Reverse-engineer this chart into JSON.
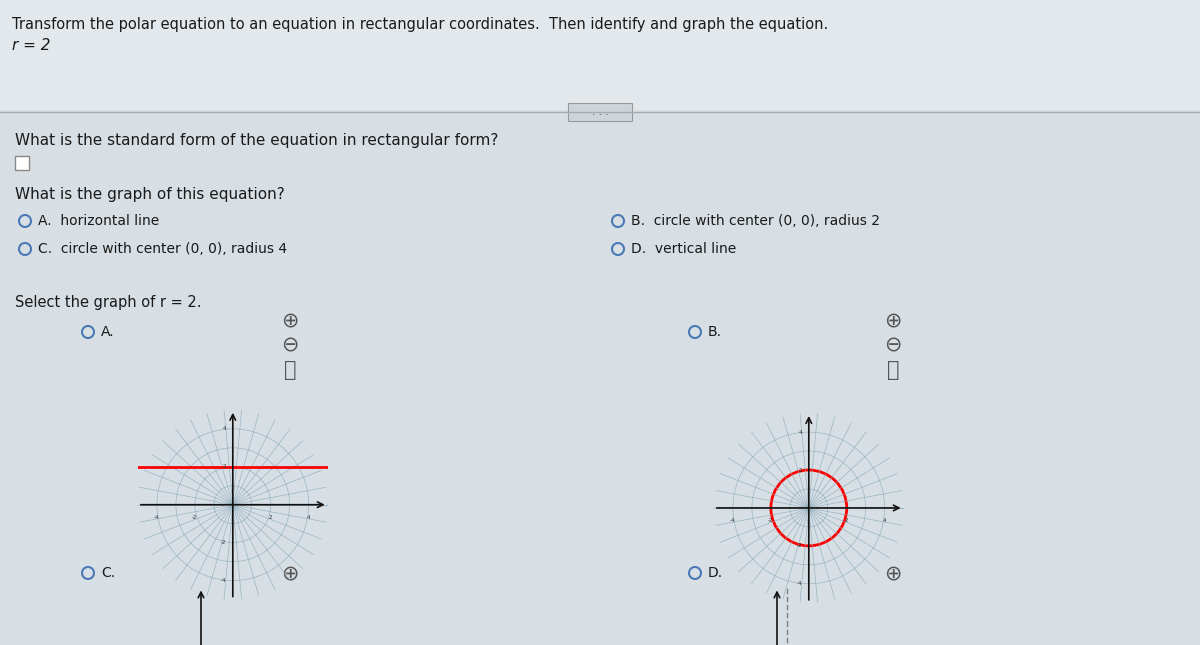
{
  "bg_color": "#d8dfe4",
  "top_bg_color": "#e2e8ec",
  "title_line1": "Transform the polar equation to an equation in rectangular coordinates.  Then identify and graph the equation.",
  "title_line2": "r = 2",
  "question1": "What is the standard form of the equation in rectangular form?",
  "question2": "What is the graph of this equation?",
  "options_left": [
    "A.  horizontal line",
    "C.  circle with center (0, 0), radius 4"
  ],
  "options_right": [
    "B.  circle with center (0, 0), radius 2",
    "D.  vertical line"
  ],
  "select_text": "Select the graph of r = 2.",
  "font_color": "#1a1a1a",
  "radio_color": "#4a7ab5",
  "graph_bg": "#bec9d0",
  "grid_color": "#8aaabb",
  "axis_color": "#111111",
  "highlight_A": "red_horizontal",
  "highlight_B": "red_circle"
}
